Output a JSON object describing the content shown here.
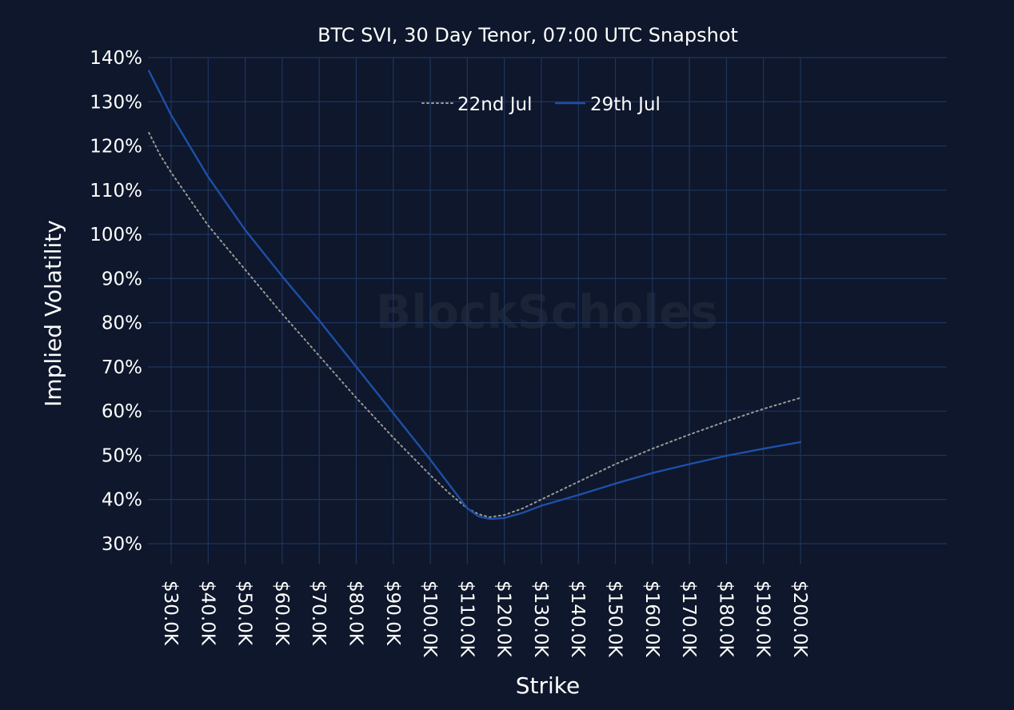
{
  "chart_data": {
    "type": "line",
    "title": "BTC SVI, 30 Day Tenor, 07:00 UTC Snapshot",
    "xlabel": "Strike",
    "ylabel": "Implied Volatility",
    "watermark": "BlockScholes",
    "x_ticks": [
      "$30.0K",
      "$40.0K",
      "$50.0K",
      "$60.0K",
      "$70.0K",
      "$80.0K",
      "$90.0K",
      "$100.0K",
      "$110.0K",
      "$120.0K",
      "$130.0K",
      "$140.0K",
      "$150.0K",
      "$160.0K",
      "$170.0K",
      "$180.0K",
      "$190.0K",
      "$200.0K"
    ],
    "x_tick_values": [
      30000,
      40000,
      50000,
      60000,
      70000,
      80000,
      90000,
      100000,
      110000,
      120000,
      130000,
      140000,
      150000,
      160000,
      170000,
      180000,
      190000,
      200000
    ],
    "y_ticks": [
      "30%",
      "40%",
      "50%",
      "60%",
      "70%",
      "80%",
      "90%",
      "100%",
      "110%",
      "120%",
      "130%",
      "140%"
    ],
    "y_tick_values": [
      30,
      40,
      50,
      60,
      70,
      80,
      90,
      100,
      110,
      120,
      130,
      140
    ],
    "xlim": [
      24000,
      214000
    ],
    "ylim": [
      25,
      140
    ],
    "grid": true,
    "legend_position": "top-center",
    "series": [
      {
        "name": "22nd Jul",
        "color": "#9a9a96",
        "style": "dotted",
        "x": [
          24000,
          27000,
          30000,
          35000,
          40000,
          45000,
          50000,
          60000,
          70000,
          80000,
          90000,
          100000,
          105000,
          110000,
          113000,
          116000,
          120000,
          125000,
          130000,
          140000,
          150000,
          160000,
          170000,
          180000,
          190000,
          200000
        ],
        "y": [
          123,
          118,
          114,
          108,
          102,
          97,
          92,
          82,
          72.5,
          63,
          54,
          45.5,
          41.5,
          38,
          36.7,
          36,
          36.5,
          38,
          40,
          44,
          48,
          51.5,
          54.7,
          57.7,
          60.5,
          63
        ]
      },
      {
        "name": "29th Jul",
        "color": "#1e4fa8",
        "style": "solid",
        "x": [
          24000,
          27000,
          30000,
          35000,
          40000,
          45000,
          50000,
          60000,
          70000,
          80000,
          90000,
          100000,
          105000,
          110000,
          113000,
          116000,
          120000,
          125000,
          130000,
          140000,
          150000,
          160000,
          170000,
          180000,
          190000,
          200000
        ],
        "y": [
          137,
          132,
          127,
          120,
          113,
          107,
          101,
          90.5,
          80.5,
          70,
          59.5,
          49,
          43.5,
          38,
          36.2,
          35.6,
          35.8,
          37,
          38.6,
          41,
          43.6,
          46,
          48,
          49.9,
          51.5,
          53
        ]
      }
    ]
  }
}
